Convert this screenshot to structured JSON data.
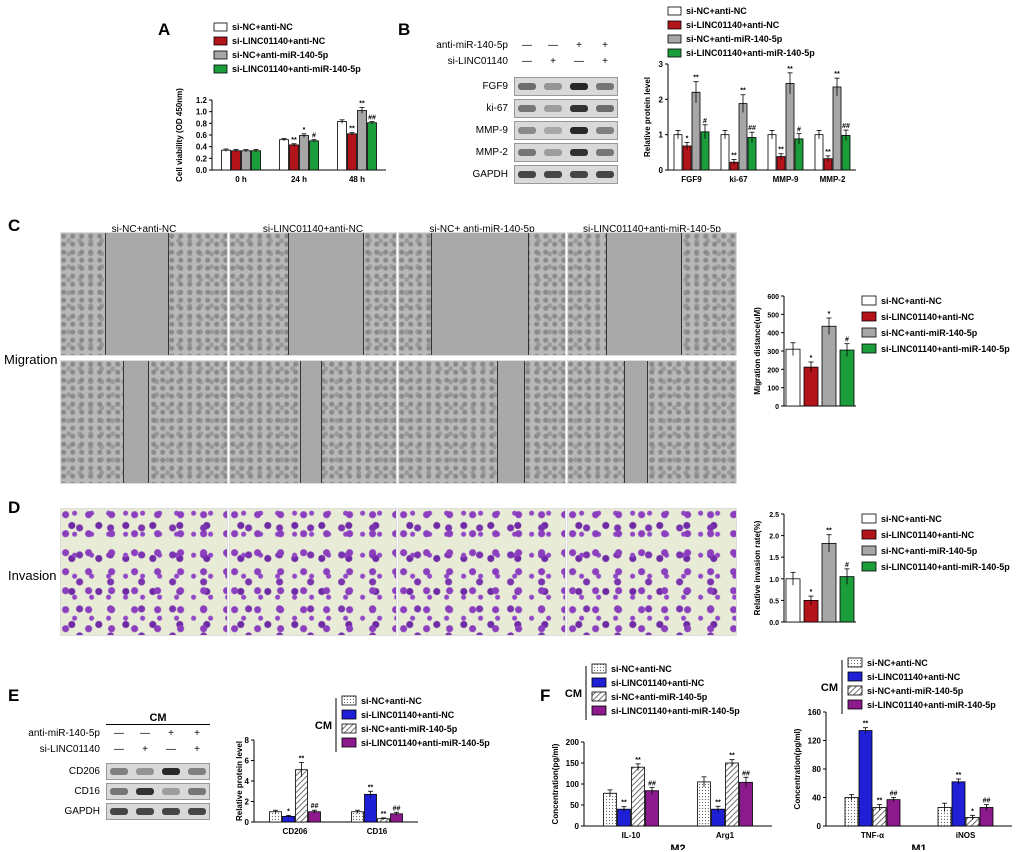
{
  "panel_labels": [
    "A",
    "B",
    "C",
    "D",
    "E",
    "F"
  ],
  "side_labels": {
    "migration": "Migration",
    "invasion": "Invasion"
  },
  "colors": {
    "white": "#ffffff",
    "red": "#b3131b",
    "gray": "#a6a6a6",
    "green": "#1a9d3a",
    "blue": "#1f1fd6",
    "purple": "#8c1a8c"
  },
  "legend_main": [
    "si-NC+anti-NC",
    "si-LINC01140+anti-NC",
    "si-NC+anti-miR-140-5p",
    "si-LINC01140+anti-miR-140-5p"
  ],
  "micro_titles": [
    "si-NC+anti-NC",
    "si-LINC01140+anti-NC",
    "si-NC+ anti-miR-140-5p",
    "si-LINC01140+anti-miR-140-5p"
  ],
  "wb_B": {
    "treat_rows": [
      {
        "label": "anti-miR-140-5p",
        "marks": [
          "—",
          "—",
          "+",
          "+"
        ]
      },
      {
        "label": "si-LINC01140",
        "marks": [
          "—",
          "+",
          "—",
          "+"
        ]
      }
    ],
    "bands": [
      "FGF9",
      "ki-67",
      "MMP-9",
      "MMP-2",
      "GAPDH"
    ]
  },
  "wb_E": {
    "header": "CM",
    "treat_rows": [
      {
        "label": "anti-miR-140-5p",
        "marks": [
          "—",
          "—",
          "+",
          "+"
        ]
      },
      {
        "label": "si-LINC01140",
        "marks": [
          "—",
          "+",
          "—",
          "+"
        ]
      }
    ],
    "bands": [
      "CD206",
      "CD16",
      "GAPDH"
    ]
  },
  "chart_data": [
    {
      "id": "A",
      "type": "bar",
      "ylabel": "Cell viability (OD 450nm)",
      "categories": [
        "0 h",
        "24 h",
        "48 h"
      ],
      "ylim": [
        0,
        1.2
      ],
      "yticks": [
        "0.0",
        "0.2",
        "0.4",
        "0.6",
        "0.8",
        "1.0",
        "1.2"
      ],
      "series": [
        {
          "name": "si-NC+anti-NC",
          "values": [
            0.34,
            0.52,
            0.83
          ],
          "err": [
            0.02,
            0.02,
            0.03
          ],
          "sig": [
            "",
            "",
            ""
          ]
        },
        {
          "name": "si-LINC01140+anti-NC",
          "values": [
            0.33,
            0.43,
            0.62
          ],
          "err": [
            0.02,
            0.02,
            0.02
          ],
          "sig": [
            "",
            "**",
            "**"
          ]
        },
        {
          "name": "si-NC+anti-miR-140-5p",
          "values": [
            0.33,
            0.59,
            1.02
          ],
          "err": [
            0.02,
            0.03,
            0.05
          ],
          "sig": [
            "",
            "*",
            "**"
          ]
        },
        {
          "name": "si-LINC01140+anti-miR-140-5p",
          "values": [
            0.33,
            0.5,
            0.81
          ],
          "err": [
            0.02,
            0.02,
            0.02
          ],
          "sig": [
            "",
            "#",
            "##"
          ]
        }
      ]
    },
    {
      "id": "B",
      "type": "bar",
      "ylabel": "Relative protein level",
      "categories": [
        "FGF9",
        "ki-67",
        "MMP-9",
        "MMP-2"
      ],
      "ylim": [
        0,
        3
      ],
      "yticks": [
        "0",
        "1",
        "2",
        "3"
      ],
      "series": [
        {
          "name": "si-NC+anti-NC",
          "values": [
            1.0,
            1.0,
            1.0,
            1.0
          ],
          "err": [
            0.12,
            0.12,
            0.12,
            0.12
          ],
          "sig": [
            "",
            "",
            "",
            ""
          ]
        },
        {
          "name": "si-LINC01140+anti-NC",
          "values": [
            0.68,
            0.22,
            0.38,
            0.32
          ],
          "err": [
            0.1,
            0.08,
            0.08,
            0.08
          ],
          "sig": [
            "*",
            "**",
            "**",
            "**"
          ]
        },
        {
          "name": "si-NC+anti-miR-140-5p",
          "values": [
            2.2,
            1.88,
            2.45,
            2.35
          ],
          "err": [
            0.3,
            0.25,
            0.3,
            0.25
          ],
          "sig": [
            "**",
            "**",
            "**",
            "**"
          ]
        },
        {
          "name": "si-LINC01140+anti-miR-140-5p",
          "values": [
            1.08,
            0.92,
            0.88,
            0.98
          ],
          "err": [
            0.2,
            0.15,
            0.15,
            0.15
          ],
          "sig": [
            "#",
            "##",
            "#",
            "##"
          ]
        }
      ]
    },
    {
      "id": "C",
      "type": "bar",
      "ylabel": "Migration distance(uM)",
      "categories": [
        ""
      ],
      "ylim": [
        0,
        600
      ],
      "yticks": [
        "0",
        "100",
        "200",
        "300",
        "400",
        "500",
        "600"
      ],
      "series": [
        {
          "name": "si-NC+anti-NC",
          "values": [
            310
          ],
          "err": [
            35
          ],
          "sig": [
            ""
          ]
        },
        {
          "name": "si-LINC01140+anti-NC",
          "values": [
            212
          ],
          "err": [
            28
          ],
          "sig": [
            "*"
          ]
        },
        {
          "name": "si-NC+anti-miR-140-5p",
          "values": [
            435
          ],
          "err": [
            45
          ],
          "sig": [
            "*"
          ]
        },
        {
          "name": "si-LINC01140+anti-miR-140-5p",
          "values": [
            305
          ],
          "err": [
            35
          ],
          "sig": [
            "#"
          ]
        }
      ]
    },
    {
      "id": "D",
      "type": "bar",
      "ylabel": "Relative invasion rate(%)",
      "categories": [
        ""
      ],
      "ylim": [
        0,
        2.5
      ],
      "yticks": [
        "0.0",
        "0.5",
        "1.0",
        "1.5",
        "2.0",
        "2.5"
      ],
      "series": [
        {
          "name": "si-NC+anti-NC",
          "values": [
            1.0
          ],
          "err": [
            0.15
          ],
          "sig": [
            ""
          ]
        },
        {
          "name": "si-LINC01140+anti-NC",
          "values": [
            0.5
          ],
          "err": [
            0.1
          ],
          "sig": [
            "*"
          ]
        },
        {
          "name": "si-NC+anti-miR-140-5p",
          "values": [
            1.82
          ],
          "err": [
            0.2
          ],
          "sig": [
            "**"
          ]
        },
        {
          "name": "si-LINC01140+anti-miR-140-5p",
          "values": [
            1.05
          ],
          "err": [
            0.18
          ],
          "sig": [
            "#"
          ]
        }
      ]
    },
    {
      "id": "E",
      "type": "bar",
      "ylabel": "Relative protein level",
      "legend_group": "CM",
      "categories": [
        "CD206",
        "CD16"
      ],
      "ylim": [
        0,
        8
      ],
      "yticks": [
        "0",
        "2",
        "4",
        "6",
        "8"
      ],
      "series": [
        {
          "name": "si-NC+anti-NC",
          "values": [
            1.0,
            1.0
          ],
          "err": [
            0.15,
            0.15
          ],
          "sig": [
            "",
            ""
          ]
        },
        {
          "name": "si-LINC01140+anti-NC",
          "values": [
            0.55,
            2.7
          ],
          "err": [
            0.1,
            0.3
          ],
          "sig": [
            "*",
            "**"
          ]
        },
        {
          "name": "si-NC+anti-miR-140-5p",
          "values": [
            5.1,
            0.32
          ],
          "err": [
            0.7,
            0.08
          ],
          "sig": [
            "**",
            "**"
          ]
        },
        {
          "name": "si-LINC01140+anti-miR-140-5p",
          "values": [
            1.0,
            0.8
          ],
          "err": [
            0.15,
            0.15
          ],
          "sig": [
            "##",
            "##"
          ]
        }
      ]
    },
    {
      "id": "F1",
      "type": "bar",
      "ylabel": "Concentration(pg/ml)",
      "xlabel": "M2",
      "legend_group": "CM",
      "categories": [
        "IL-10",
        "Arg1"
      ],
      "ylim": [
        0,
        200
      ],
      "yticks": [
        "0",
        "50",
        "100",
        "150",
        "200"
      ],
      "series": [
        {
          "name": "si-NC+anti-NC",
          "values": [
            78,
            105
          ],
          "err": [
            8,
            12
          ],
          "sig": [
            "",
            ""
          ]
        },
        {
          "name": "si-LINC01140+anti-NC",
          "values": [
            40,
            40
          ],
          "err": [
            6,
            7
          ],
          "sig": [
            "**",
            "**"
          ]
        },
        {
          "name": "si-NC+anti-miR-140-5p",
          "values": [
            140,
            150
          ],
          "err": [
            8,
            8
          ],
          "sig": [
            "**",
            "**"
          ]
        },
        {
          "name": "si-LINC01140+anti-miR-140-5p",
          "values": [
            84,
            104
          ],
          "err": [
            8,
            12
          ],
          "sig": [
            "##",
            "##"
          ]
        }
      ]
    },
    {
      "id": "F2",
      "type": "bar",
      "ylabel": "Concentration(pg/ml)",
      "xlabel": "M1",
      "legend_group": "CM",
      "categories": [
        "TNF-α",
        "iNOS"
      ],
      "ylim": [
        0,
        160
      ],
      "yticks": [
        "0",
        "40",
        "80",
        "120",
        "160"
      ],
      "series": [
        {
          "name": "si-NC+anti-NC",
          "values": [
            40,
            26
          ],
          "err": [
            4,
            6
          ],
          "sig": [
            "",
            ""
          ]
        },
        {
          "name": "si-LINC01140+anti-NC",
          "values": [
            134,
            62
          ],
          "err": [
            4,
            4
          ],
          "sig": [
            "**",
            "**"
          ]
        },
        {
          "name": "si-NC+anti-miR-140-5p",
          "values": [
            26,
            12
          ],
          "err": [
            4,
            3
          ],
          "sig": [
            "**",
            "*"
          ]
        },
        {
          "name": "si-LINC01140+anti-miR-140-5p",
          "values": [
            37,
            26
          ],
          "err": [
            3,
            4
          ],
          "sig": [
            "##",
            "##"
          ]
        }
      ]
    }
  ]
}
